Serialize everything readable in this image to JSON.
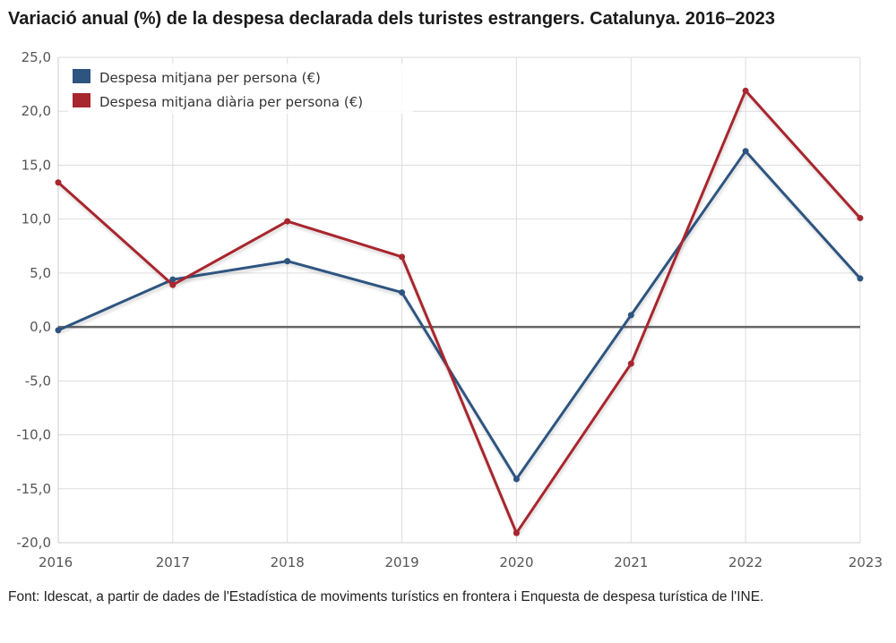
{
  "title": "Variació anual (%) de la despesa declarada dels turistes estrangers. Catalunya. 2016–2023",
  "source": "Font: Idescat, a partir de dades de l'Estadística de moviments turístics en frontera i Enquesta de despesa turística de l'INE.",
  "colors": {
    "series1": "#2e5480",
    "series2": "#a8262d",
    "grid": "#dddddd",
    "zero": "#666666"
  },
  "chart_data": {
    "type": "line",
    "title": "Variació anual (%) de la despesa declarada dels turistes estrangers. Catalunya. 2016–2023",
    "x": [
      "2016",
      "2017",
      "2018",
      "2019",
      "2020",
      "2021",
      "2022",
      "2023"
    ],
    "y_ticks": [
      "25,0",
      "20,0",
      "15,0",
      "10,0",
      "5,0",
      "0,0",
      "-5,0",
      "-10,0",
      "-15,0",
      "-20,0"
    ],
    "y_tick_values": [
      25,
      20,
      15,
      10,
      5,
      0,
      -5,
      -10,
      -15,
      -20
    ],
    "ylim": [
      -20,
      25
    ],
    "grid": true,
    "legend_position": "top-left",
    "series": [
      {
        "name": "Despesa mitjana per persona (€)",
        "color": "#2e5480",
        "values": [
          -0.3,
          4.4,
          6.1,
          3.2,
          -14.1,
          1.1,
          16.3,
          4.5
        ]
      },
      {
        "name": "Despesa mitjana diària per persona (€)",
        "color": "#a8262d",
        "values": [
          13.4,
          3.9,
          9.8,
          6.5,
          -19.1,
          -3.4,
          21.9,
          10.1
        ]
      }
    ]
  }
}
